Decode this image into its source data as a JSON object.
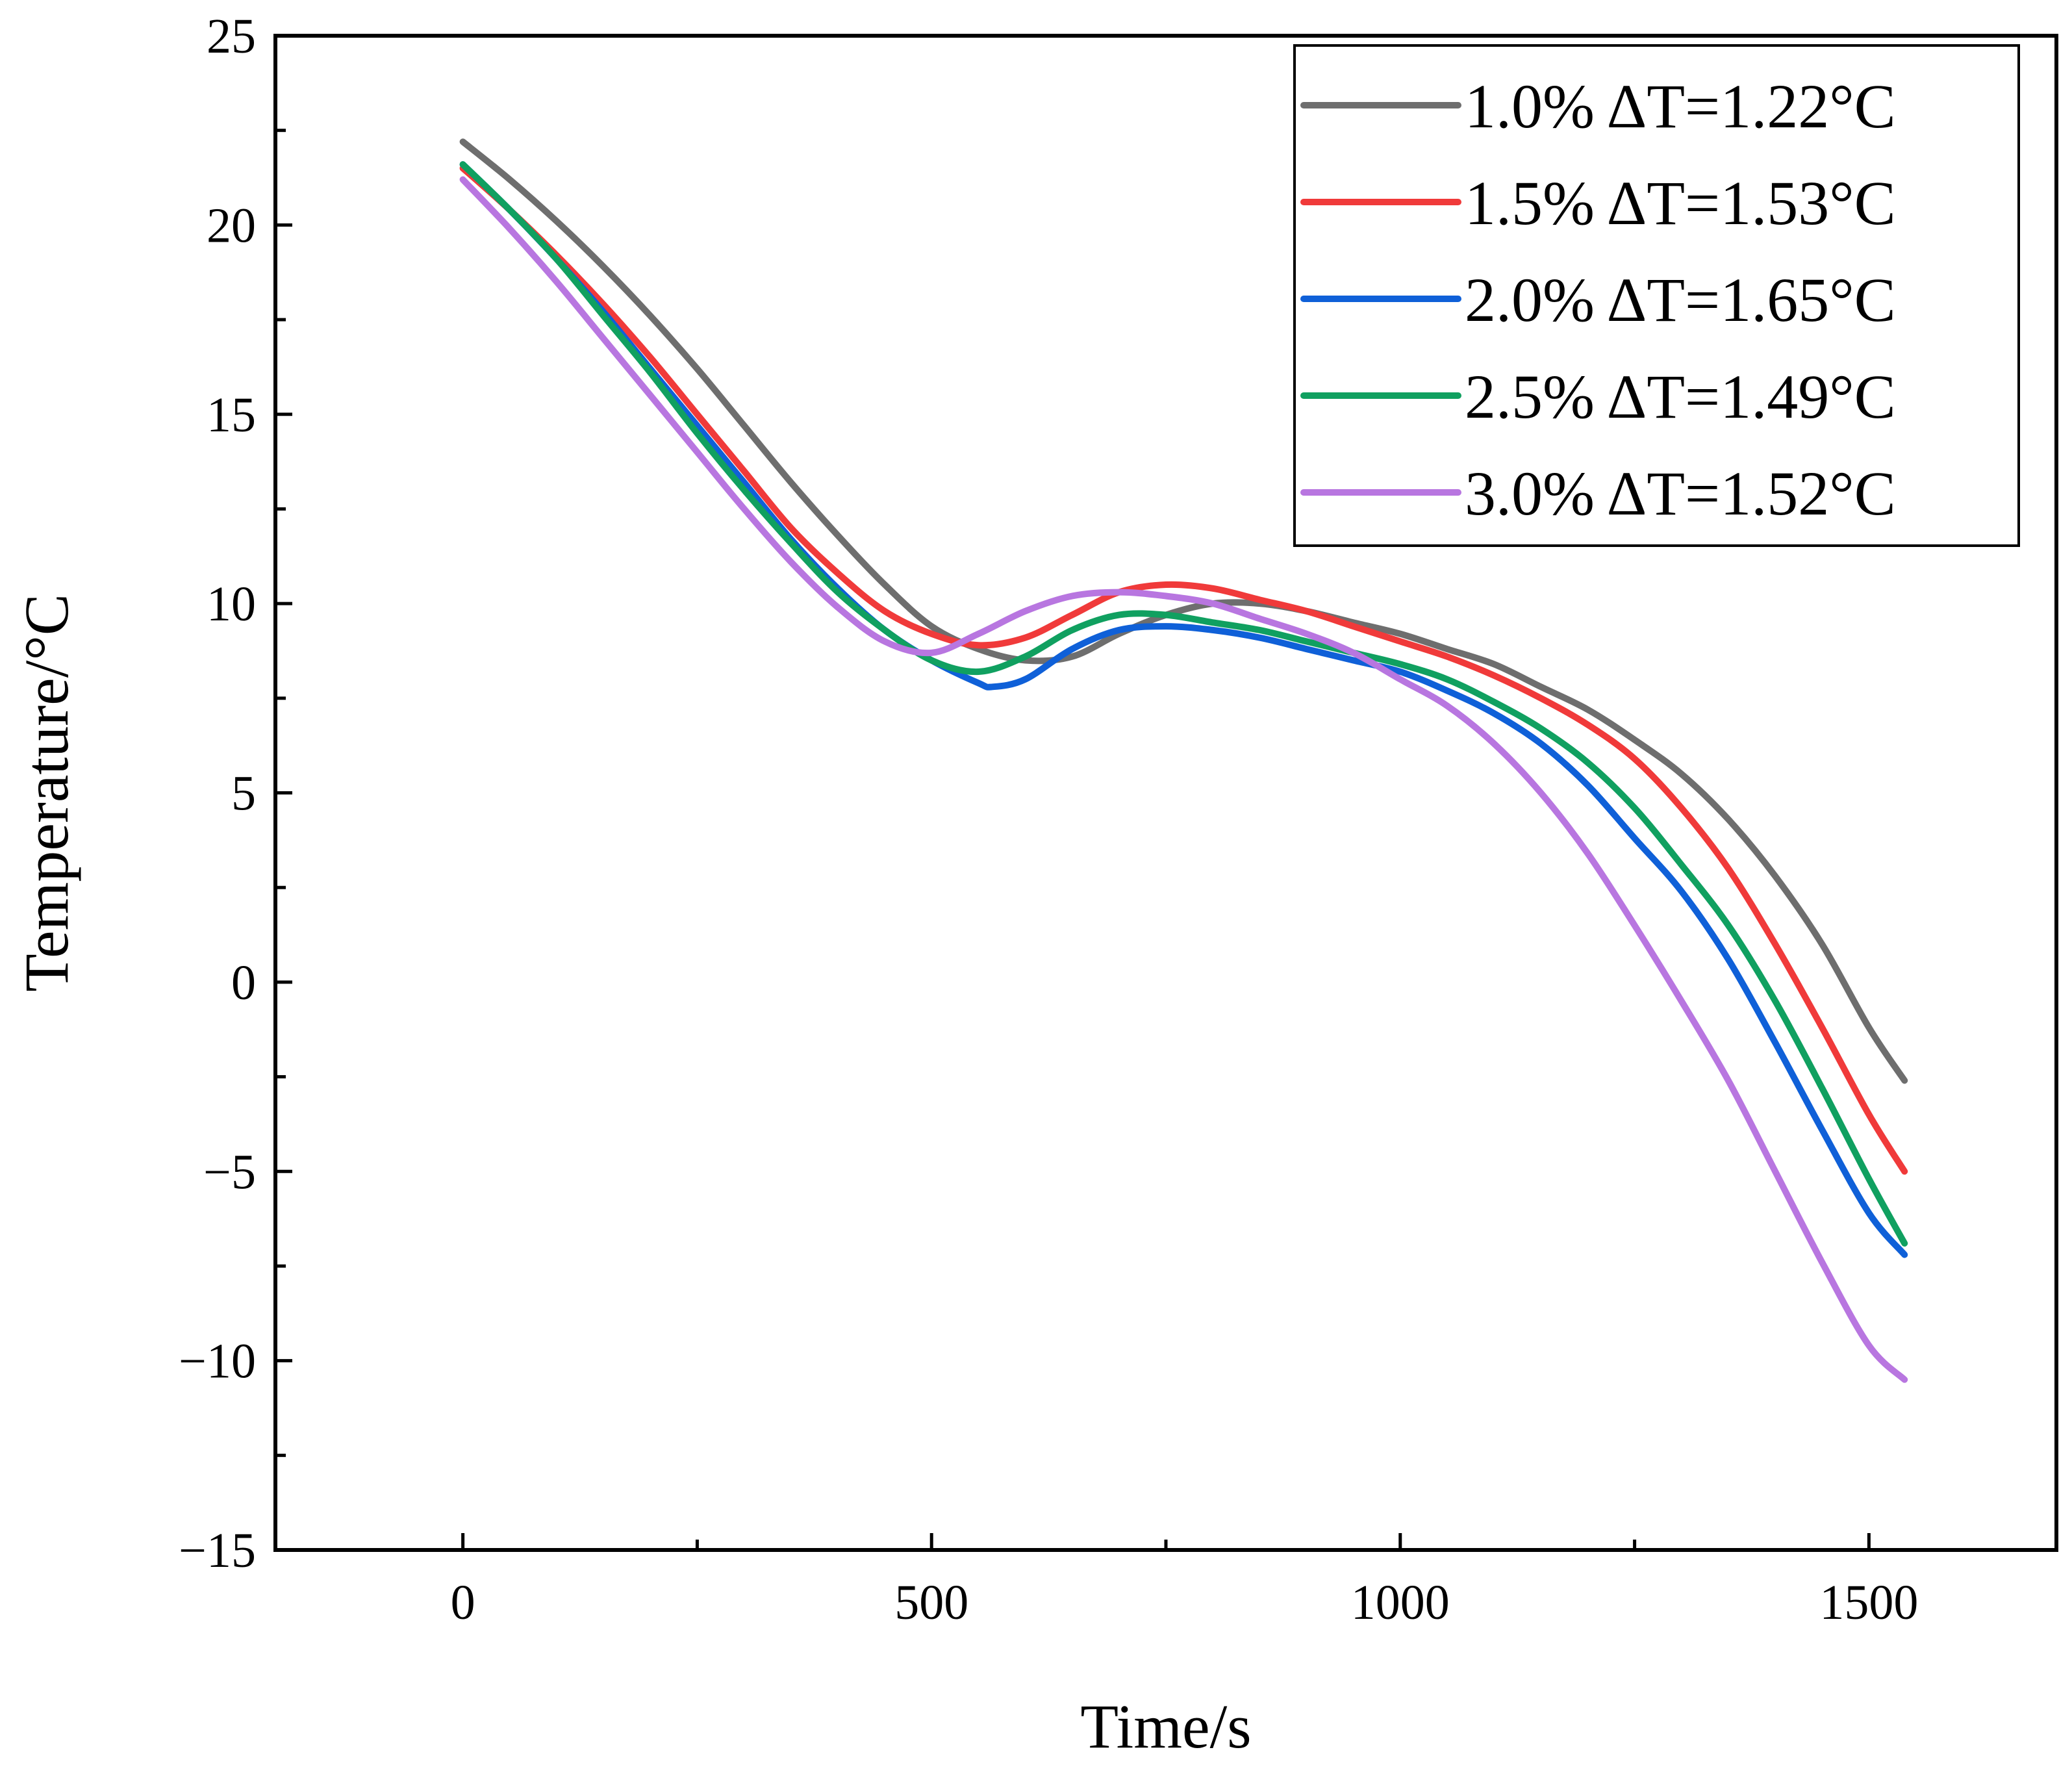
{
  "chart_data": {
    "type": "line",
    "title": "",
    "xlabel": "Time/s",
    "ylabel": "Temperature/°C",
    "xlim": [
      -200,
      1700
    ],
    "ylim": [
      -15,
      25
    ],
    "xticks": [
      0,
      500,
      1000,
      1500
    ],
    "xtick_labels": [
      "0",
      "500",
      "1000",
      "1500"
    ],
    "yticks": [
      25,
      20,
      15,
      10,
      5,
      0,
      -5,
      -10,
      -15
    ],
    "ytick_labels": [
      "25",
      "20",
      "15",
      "10",
      "5",
      "0",
      "−5",
      "−10",
      "−15"
    ],
    "grid": false,
    "legend_position": "top-right",
    "series": [
      {
        "name": "1.0%  ΔT=1.22°C",
        "color": "#6e6e6e",
        "x": [
          0,
          50,
          100,
          150,
          200,
          250,
          300,
          350,
          400,
          450,
          500,
          550,
          600,
          650,
          700,
          750,
          800,
          850,
          900,
          950,
          1000,
          1050,
          1100,
          1150,
          1200,
          1250,
          1300,
          1350,
          1400,
          1450,
          1500,
          1538
        ],
        "y": [
          22.2,
          21.2,
          20.1,
          18.9,
          17.6,
          16.2,
          14.7,
          13.2,
          11.8,
          10.5,
          9.4,
          8.8,
          8.5,
          8.6,
          9.2,
          9.7,
          10.0,
          10.0,
          9.8,
          9.5,
          9.2,
          8.8,
          8.4,
          7.8,
          7.2,
          6.4,
          5.5,
          4.3,
          2.8,
          1.0,
          -1.2,
          -2.6
        ]
      },
      {
        "name": "1.5%  ΔT=1.53°C",
        "color": "#f03a3a",
        "x": [
          0,
          50,
          100,
          150,
          200,
          250,
          300,
          350,
          400,
          450,
          500,
          550,
          600,
          650,
          700,
          750,
          800,
          850,
          900,
          950,
          1000,
          1050,
          1100,
          1150,
          1200,
          1250,
          1300,
          1350,
          1400,
          1450,
          1500,
          1538
        ],
        "y": [
          21.5,
          20.4,
          19.2,
          17.9,
          16.5,
          15.0,
          13.5,
          12.0,
          10.8,
          9.8,
          9.2,
          8.9,
          9.1,
          9.7,
          10.3,
          10.5,
          10.4,
          10.1,
          9.8,
          9.4,
          9.0,
          8.6,
          8.1,
          7.5,
          6.8,
          5.9,
          4.6,
          3.0,
          1.0,
          -1.2,
          -3.5,
          -5.0
        ]
      },
      {
        "name": "2.0%  ΔT=1.65°C",
        "color": "#0f60d8",
        "x": [
          0,
          50,
          100,
          150,
          200,
          250,
          300,
          350,
          400,
          450,
          500,
          550,
          565,
          600,
          650,
          700,
          750,
          800,
          850,
          900,
          950,
          1000,
          1050,
          1100,
          1150,
          1200,
          1250,
          1300,
          1350,
          1400,
          1450,
          1500,
          1538
        ],
        "y": [
          21.6,
          20.4,
          19.1,
          17.7,
          16.2,
          14.7,
          13.2,
          11.7,
          10.4,
          9.3,
          8.5,
          7.9,
          7.8,
          8.0,
          8.8,
          9.3,
          9.4,
          9.3,
          9.1,
          8.8,
          8.5,
          8.2,
          7.7,
          7.1,
          6.3,
          5.2,
          3.8,
          2.4,
          0.6,
          -1.6,
          -3.9,
          -6.1,
          -7.2
        ]
      },
      {
        "name": "2.5%  ΔT=1.49°C",
        "color": "#10a060",
        "x": [
          0,
          50,
          100,
          150,
          200,
          250,
          300,
          350,
          400,
          450,
          500,
          550,
          600,
          650,
          700,
          750,
          800,
          850,
          900,
          950,
          1000,
          1050,
          1100,
          1150,
          1200,
          1250,
          1300,
          1350,
          1400,
          1450,
          1500,
          1538
        ],
        "y": [
          21.6,
          20.4,
          19.1,
          17.6,
          16.1,
          14.5,
          13.0,
          11.6,
          10.3,
          9.3,
          8.5,
          8.2,
          8.6,
          9.3,
          9.7,
          9.7,
          9.5,
          9.3,
          9.0,
          8.7,
          8.4,
          8.0,
          7.4,
          6.7,
          5.8,
          4.6,
          3.1,
          1.5,
          -0.5,
          -2.8,
          -5.2,
          -6.9
        ]
      },
      {
        "name": "3.0%  ΔT=1.52°C",
        "color": "#b876e0",
        "x": [
          0,
          50,
          100,
          150,
          200,
          250,
          300,
          350,
          400,
          450,
          500,
          550,
          600,
          650,
          700,
          750,
          800,
          850,
          900,
          950,
          1000,
          1050,
          1100,
          1150,
          1200,
          1250,
          1300,
          1350,
          1400,
          1450,
          1500,
          1538
        ],
        "y": [
          21.2,
          19.9,
          18.5,
          17.0,
          15.5,
          14.0,
          12.5,
          11.1,
          9.9,
          9.0,
          8.7,
          9.2,
          9.8,
          10.2,
          10.3,
          10.2,
          10.0,
          9.6,
          9.2,
          8.7,
          8.0,
          7.3,
          6.3,
          5.0,
          3.4,
          1.5,
          -0.5,
          -2.6,
          -5.0,
          -7.4,
          -9.6,
          -10.5
        ]
      }
    ]
  }
}
